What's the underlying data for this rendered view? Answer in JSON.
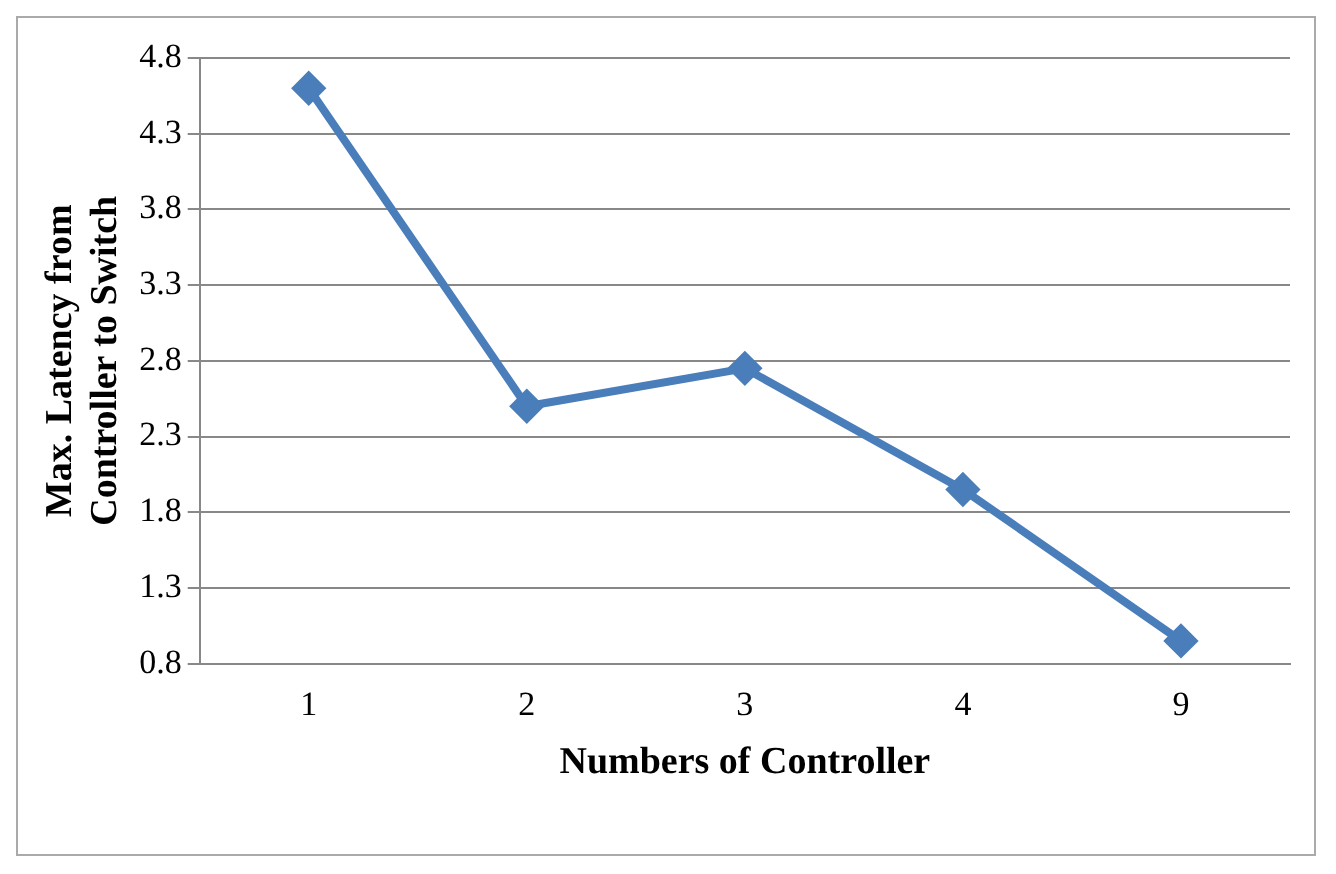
{
  "chart_data": {
    "type": "line",
    "xlabel": "Numbers of Controller",
    "ylabel": "Max. Latency from Controller to Switch",
    "categories": [
      "1",
      "2",
      "3",
      "4",
      "9"
    ],
    "series": [
      {
        "color": "#4a7ebb",
        "values": [
          4.6,
          2.5,
          2.75,
          1.95,
          0.95
        ]
      }
    ],
    "ylim": [
      0.8,
      4.8
    ],
    "yticks": [
      0.8,
      1.3,
      1.8,
      2.3,
      2.8,
      3.3,
      3.8,
      4.3,
      4.8
    ],
    "grid": "y",
    "legend": false,
    "marker": "diamond",
    "line_style": "solid"
  }
}
